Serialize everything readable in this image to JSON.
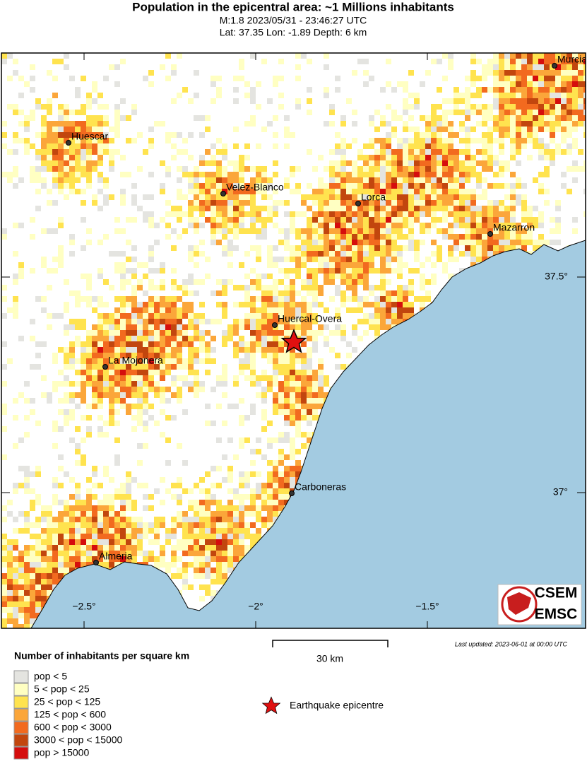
{
  "header": {
    "title": "Population in the epicentral area: ~1 Millions inhabitants",
    "subtitle_1": "M:1.8 2023/05/31 - 23:46:27 UTC",
    "subtitle_2": "Lat: 37.35 Lon: -1.89 Depth: 6 km"
  },
  "map": {
    "cities": [
      "Huescar",
      "Velez-Blanco",
      "Lorca",
      "Mazarron",
      "Murcia",
      "Huercal-Overa",
      "La Mojonera",
      "Carboneras",
      "Almeria"
    ],
    "lon_ticks": [
      {
        "value": -2.5,
        "label": "−2.5°"
      },
      {
        "value": -2,
        "label": "−2°"
      },
      {
        "value": -1.5,
        "label": "−1.5°"
      }
    ],
    "lat_ticks": [
      {
        "value": 37.5,
        "label": "37.5°"
      },
      {
        "value": 37,
        "label": "37°"
      }
    ],
    "scale_label": "30 km",
    "last_updated": "Last updated: 2023-06-01 at 00:00 UTC",
    "logo": [
      "CSEM",
      "EMSC"
    ]
  },
  "legend": {
    "title": "Number of inhabitants per square km",
    "entries": [
      {
        "label": "pop < 5",
        "color": "#e4e4e0"
      },
      {
        "label": "5 < pop < 25",
        "color": "#ffffc2"
      },
      {
        "label": "25 < pop < 125",
        "color": "#ffe34f"
      },
      {
        "label": "125 < pop < 600",
        "color": "#fba63a"
      },
      {
        "label": "600 < pop < 3000",
        "color": "#f26a1f"
      },
      {
        "label": "3000 < pop < 15000",
        "color": "#c2460e"
      },
      {
        "label": "pop > 15000",
        "color": "#d50d0d"
      }
    ],
    "epicentre": "Earthquake epicentre"
  }
}
